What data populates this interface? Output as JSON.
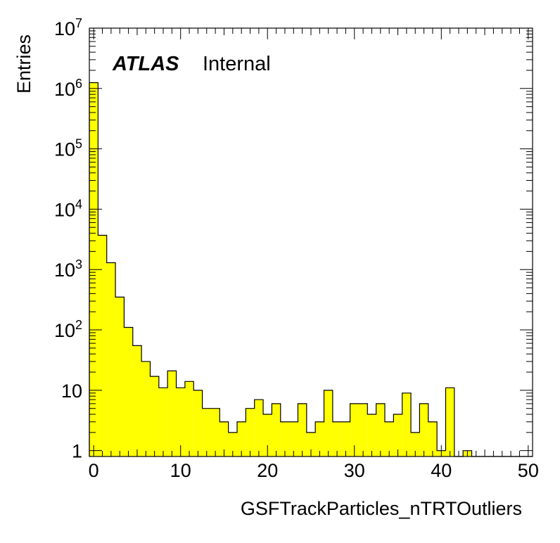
{
  "chart_data": {
    "type": "bar",
    "title": "",
    "xlabel": "GSFTrackParticles_nTRTOutliers",
    "ylabel": "Entries",
    "xlim": [
      -0.5,
      50.5
    ],
    "ylim": [
      0.8,
      10000000
    ],
    "log_y": true,
    "grid": false,
    "fill_color": "#ffff00",
    "line_color": "#000000",
    "x_ticks": [
      0,
      10,
      20,
      30,
      40,
      50
    ],
    "x_tick_labels": [
      "0",
      "10",
      "20",
      "30",
      "40",
      "50"
    ],
    "y_ticks": [
      1,
      10,
      100,
      1000,
      10000,
      100000,
      1000000,
      10000000
    ],
    "y_tick_labels": [
      {
        "base": "1",
        "exp": ""
      },
      {
        "base": "10",
        "exp": ""
      },
      {
        "base": "10",
        "exp": "2"
      },
      {
        "base": "10",
        "exp": "3"
      },
      {
        "base": "10",
        "exp": "4"
      },
      {
        "base": "10",
        "exp": "5"
      },
      {
        "base": "10",
        "exp": "6"
      },
      {
        "base": "10",
        "exp": "7"
      }
    ],
    "bin_edges_start": -0.5,
    "bin_width": 1,
    "values": [
      1250000,
      3700,
      1300,
      350,
      110,
      55,
      30,
      17,
      11,
      21,
      11,
      14,
      10,
      5,
      5,
      3,
      2,
      3,
      5,
      7,
      4,
      6,
      3,
      3,
      6,
      2,
      3,
      10,
      3,
      3,
      6,
      6,
      4,
      6,
      3,
      4,
      9,
      2,
      6,
      3,
      1,
      11,
      0,
      1,
      0,
      0,
      0,
      0,
      0,
      0,
      0
    ],
    "annotations": {
      "experiment": "ATLAS",
      "status": "Internal"
    }
  }
}
